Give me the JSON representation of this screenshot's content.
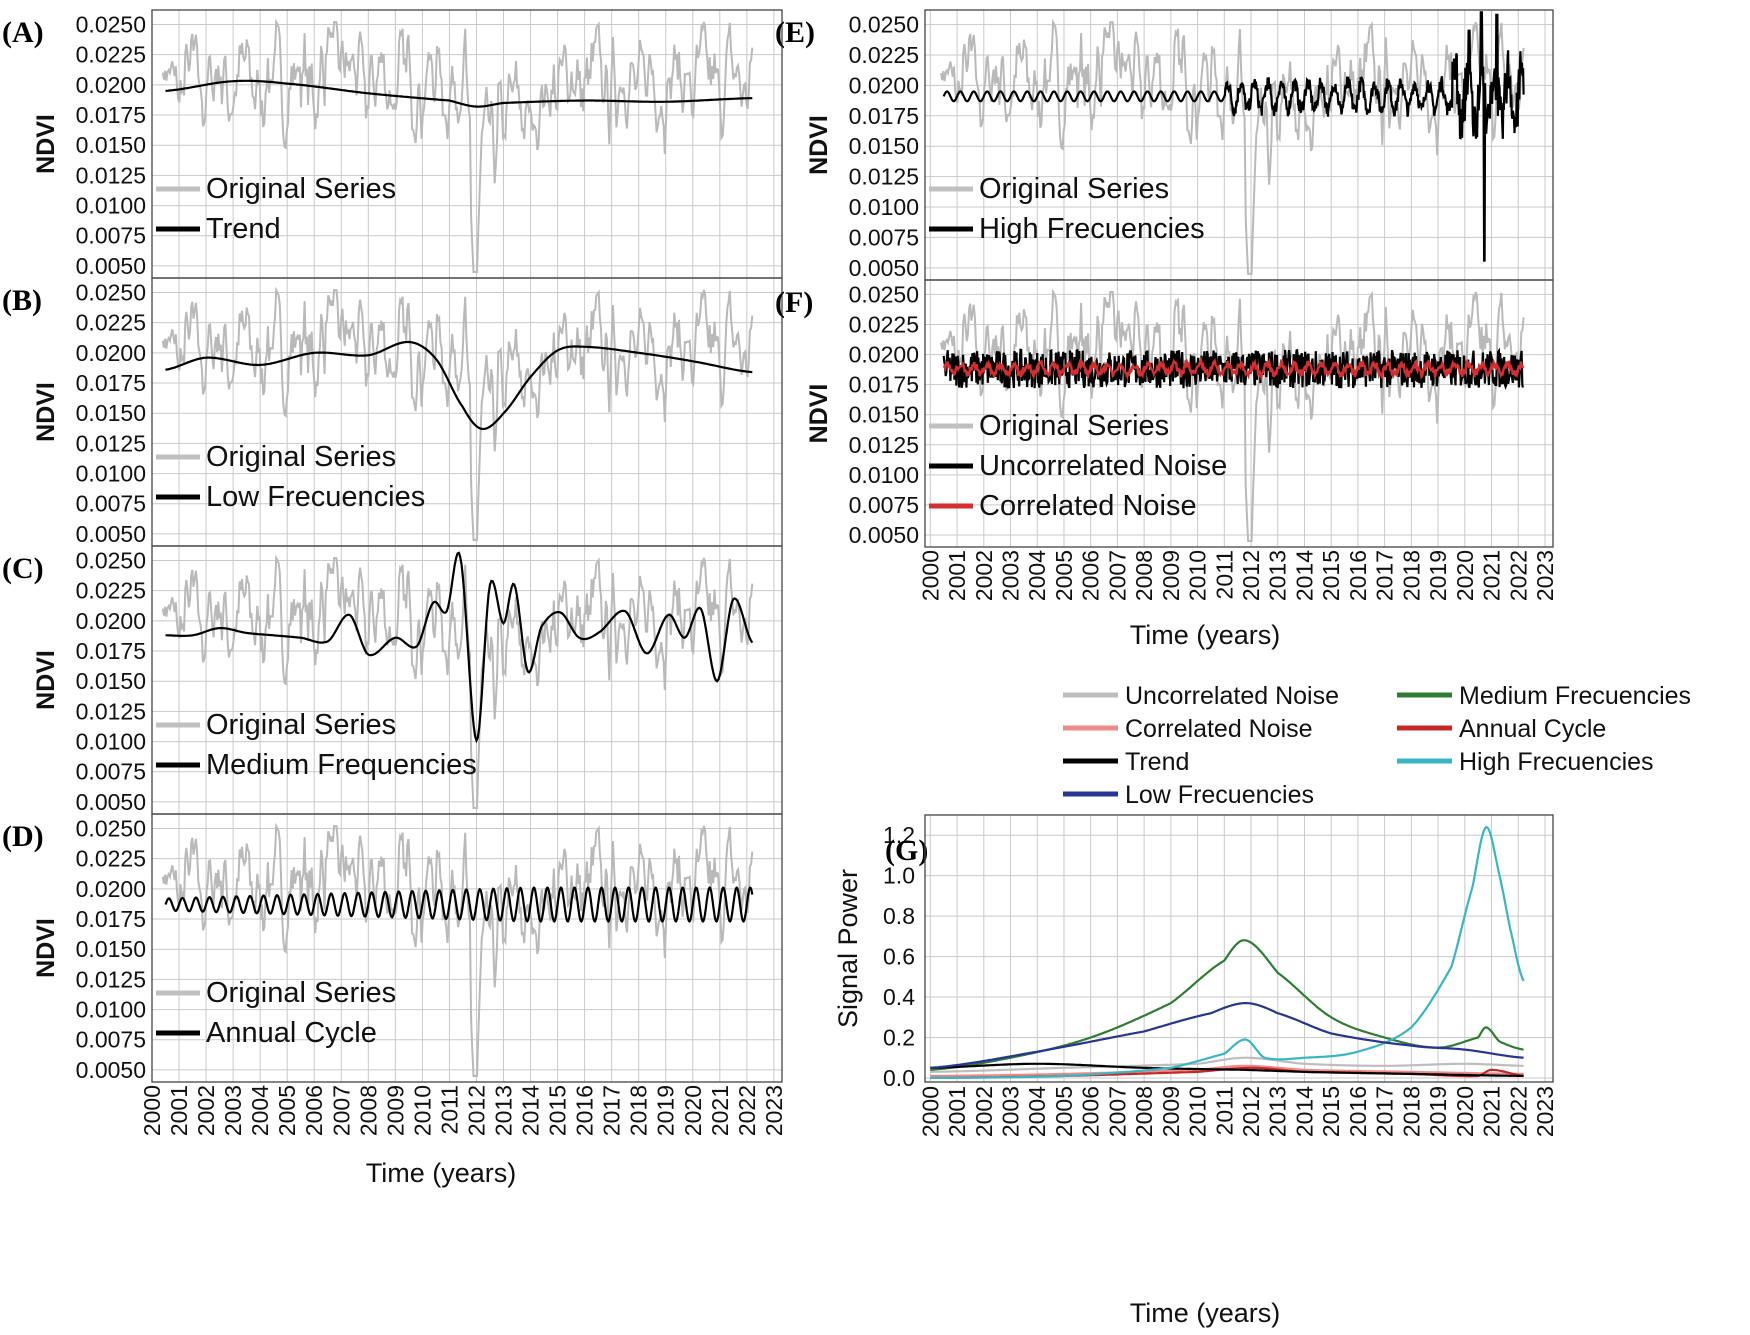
{
  "figure": {
    "x_axis": {
      "label": "Time (years)",
      "years": [
        "2000",
        "2001",
        "2002",
        "2003",
        "2004",
        "2005",
        "2006",
        "2007",
        "2008",
        "2009",
        "2010",
        "2011",
        "2012",
        "2013",
        "2014",
        "2015",
        "2016",
        "2017",
        "2018",
        "2019",
        "2020",
        "2021",
        "2022",
        "2023"
      ]
    },
    "ndvi_axis": {
      "label": "NDVI",
      "ticks": [
        "0.0250",
        "0.0225",
        "0.0200",
        "0.0175",
        "0.0150",
        "0.0125",
        "0.0100",
        "0.0075",
        "0.0050"
      ]
    }
  },
  "chart_data": [
    {
      "id": "A",
      "panel_label": "(A)",
      "type": "line",
      "ylabel": "NDVI",
      "ylim": [
        0.004,
        0.0262
      ],
      "legend": [
        "Original Series",
        "Trend"
      ],
      "series": [
        {
          "name": "Trend",
          "color": "#000000",
          "x": [
            2000.5,
            2003,
            2005,
            2008,
            2011,
            2012,
            2013,
            2016,
            2019,
            2022.2
          ],
          "y": [
            0.0195,
            0.0203,
            0.0201,
            0.0193,
            0.0187,
            0.0182,
            0.0185,
            0.0187,
            0.0186,
            0.0189
          ]
        }
      ]
    },
    {
      "id": "B",
      "panel_label": "(B)",
      "type": "line",
      "ylabel": "NDVI",
      "ylim": [
        0.004,
        0.0262
      ],
      "legend": [
        "Original Series",
        "Low Frecuencies"
      ],
      "series": [
        {
          "name": "Low Frecuencies",
          "color": "#000000",
          "x": [
            2000.5,
            2002,
            2004,
            2006,
            2008,
            2009.5,
            2010.5,
            2011.5,
            2012.2,
            2013,
            2014,
            2015,
            2016,
            2018,
            2020,
            2022.2
          ],
          "y": [
            0.0186,
            0.0196,
            0.019,
            0.02,
            0.0198,
            0.0209,
            0.0195,
            0.0155,
            0.0137,
            0.015,
            0.018,
            0.0202,
            0.0205,
            0.02,
            0.0193,
            0.0184
          ]
        }
      ]
    },
    {
      "id": "C",
      "panel_label": "(C)",
      "type": "line",
      "ylabel": "NDVI",
      "ylim": [
        0.004,
        0.0262
      ],
      "legend": [
        "Original Series",
        "Medium Frequencies"
      ],
      "series": [
        {
          "name": "Medium Frequencies",
          "color": "#000000",
          "x": [
            2000.5,
            2001.5,
            2002.5,
            2003.5,
            2004.5,
            2005.5,
            2006.5,
            2007.3,
            2008,
            2009,
            2009.8,
            2010.4,
            2010.9,
            2011.4,
            2012,
            2012.5,
            2013,
            2013.4,
            2013.9,
            2014.4,
            2015.1,
            2015.8,
            2016.5,
            2017.5,
            2018.3,
            2019.1,
            2019.7,
            2020.3,
            2020.9,
            2021.5,
            2022.2
          ],
          "y": [
            0.0188,
            0.0188,
            0.0194,
            0.019,
            0.0188,
            0.0186,
            0.0183,
            0.0205,
            0.0172,
            0.0186,
            0.0179,
            0.0215,
            0.0208,
            0.0253,
            0.0101,
            0.023,
            0.0198,
            0.023,
            0.0158,
            0.0195,
            0.0207,
            0.0186,
            0.019,
            0.0208,
            0.0173,
            0.0205,
            0.0186,
            0.021,
            0.015,
            0.0218,
            0.0182
          ]
        }
      ]
    },
    {
      "id": "D",
      "panel_label": "(D)",
      "type": "line",
      "ylabel": "NDVI",
      "ylim": [
        0.004,
        0.0262
      ],
      "legend": [
        "Original Series",
        "Annual Cycle"
      ],
      "series": [
        {
          "name": "Annual Cycle",
          "color": "#000000",
          "cycle_center": 0.0187,
          "amplitude_start": 0.0005,
          "amplitude_end": 0.0014,
          "period_years": 0.5,
          "x_range": [
            2000.5,
            2022.2
          ]
        }
      ]
    },
    {
      "id": "E",
      "panel_label": "(E)",
      "type": "line",
      "ylabel": "NDVI",
      "ylim": [
        0.004,
        0.0262
      ],
      "legend": [
        "Original Series",
        "High Frecuencies"
      ],
      "series": [
        {
          "name": "High Frecuencies",
          "color": "#000000",
          "x": [
            2000.5,
            2011,
            2012,
            2019.5,
            2020.2,
            2020.7,
            2021.2,
            2022.2
          ],
          "y": [
            0.0192,
            0.0192,
            0.0188,
            0.0195,
            0.0245,
            0.0056,
            0.0258,
            0.0185
          ]
        }
      ]
    },
    {
      "id": "F",
      "panel_label": "(F)",
      "type": "line",
      "ylabel": "NDVI",
      "ylim": [
        0.004,
        0.0262
      ],
      "legend": [
        "Original Series",
        "Uncorrelated Noise",
        "Correlated Noise"
      ],
      "series": [
        {
          "name": "Uncorrelated Noise",
          "color": "#000000",
          "center": 0.0188,
          "spread": 0.0016
        },
        {
          "name": "Correlated Noise",
          "color": "#d42e2e",
          "center": 0.0188,
          "spread": 0.0006
        }
      ]
    },
    {
      "id": "G",
      "panel_label": "(G)",
      "type": "line",
      "ylabel": "Signal Power",
      "xlabel": "Time (years)",
      "ylim": [
        -0.02,
        1.3
      ],
      "yticks": [
        "0.0",
        "0.2",
        "0.4",
        "0.6",
        "0.8",
        "1.0",
        "1.2"
      ],
      "legend": [
        "Uncorrelated Noise",
        "Medium Frecuencies",
        "Correlated Noise",
        "Annual Cycle",
        "Trend",
        "High Frecuencies",
        "Low Frecuencies"
      ],
      "series": [
        {
          "name": "Uncorrelated Noise",
          "color": "#bdbdbd",
          "x": [
            2000,
            2005,
            2010,
            2011.8,
            2014,
            2017,
            2020,
            2022.2
          ],
          "y": [
            0.03,
            0.05,
            0.07,
            0.1,
            0.07,
            0.06,
            0.07,
            0.06
          ]
        },
        {
          "name": "Medium Frecuencies",
          "color": "#2e7d32",
          "x": [
            2000,
            2003,
            2006,
            2009,
            2011,
            2011.8,
            2013,
            2015,
            2017,
            2019,
            2020.5,
            2020.8,
            2021.3,
            2022.2
          ],
          "y": [
            0.04,
            0.1,
            0.2,
            0.37,
            0.58,
            0.68,
            0.52,
            0.3,
            0.2,
            0.15,
            0.2,
            0.25,
            0.18,
            0.14
          ]
        },
        {
          "name": "Correlated Noise",
          "color": "#ef8a8a",
          "x": [
            2000,
            2005,
            2010,
            2011.8,
            2014,
            2018,
            2022.2
          ],
          "y": [
            0.01,
            0.02,
            0.04,
            0.06,
            0.04,
            0.03,
            0.02
          ]
        },
        {
          "name": "Annual Cycle",
          "color": "#c62828",
          "x": [
            2000,
            2005,
            2010,
            2012,
            2014,
            2018,
            2020.5,
            2021,
            2022.2
          ],
          "y": [
            0.0,
            0.01,
            0.03,
            0.05,
            0.03,
            0.02,
            0.01,
            0.04,
            0.01
          ]
        },
        {
          "name": "Trend",
          "color": "#000000",
          "x": [
            2000,
            2004,
            2008,
            2011.8,
            2014,
            2018,
            2022.2
          ],
          "y": [
            0.05,
            0.07,
            0.05,
            0.04,
            0.03,
            0.02,
            0.01
          ]
        },
        {
          "name": "High Frecuencies",
          "color": "#38b6c4",
          "x": [
            2000,
            2005,
            2009,
            2011,
            2011.8,
            2012.5,
            2014,
            2016,
            2018,
            2019.5,
            2020.3,
            2020.8,
            2021.3,
            2021.8,
            2022.2
          ],
          "y": [
            0.0,
            0.01,
            0.05,
            0.12,
            0.19,
            0.1,
            0.1,
            0.13,
            0.25,
            0.55,
            0.95,
            1.24,
            1.0,
            0.68,
            0.48
          ]
        },
        {
          "name": "Low Frecuencies",
          "color": "#283593",
          "x": [
            2000,
            2004,
            2008,
            2010.5,
            2011.8,
            2013,
            2015,
            2018,
            2020,
            2022.2
          ],
          "y": [
            0.05,
            0.13,
            0.23,
            0.32,
            0.37,
            0.32,
            0.22,
            0.16,
            0.14,
            0.1
          ]
        }
      ]
    }
  ]
}
